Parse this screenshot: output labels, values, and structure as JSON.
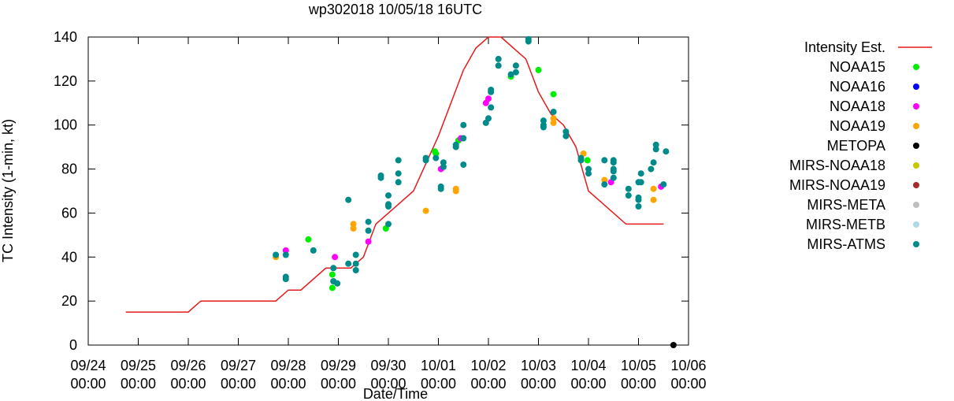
{
  "chart_data": {
    "type": "scatter",
    "title": "wp302018 10/05/18 16UTC",
    "xlabel": "Date/Time",
    "ylabel": "TC Intensity (1-min, kt)",
    "ylim": [
      0,
      140
    ],
    "yticks": [
      "0",
      "20",
      "40",
      "60",
      "80",
      "100",
      "120",
      "140"
    ],
    "xlim": [
      0,
      12
    ],
    "xticks": [
      {
        "date": "09/24",
        "time": "00:00"
      },
      {
        "date": "09/25",
        "time": "00:00"
      },
      {
        "date": "09/26",
        "time": "00:00"
      },
      {
        "date": "09/27",
        "time": "00:00"
      },
      {
        "date": "09/28",
        "time": "00:00"
      },
      {
        "date": "09/29",
        "time": "00:00"
      },
      {
        "date": "09/30",
        "time": "00:00"
      },
      {
        "date": "10/01",
        "time": "00:00"
      },
      {
        "date": "10/02",
        "time": "00:00"
      },
      {
        "date": "10/03",
        "time": "00:00"
      },
      {
        "date": "10/04",
        "time": "00:00"
      },
      {
        "date": "10/05",
        "time": "00:00"
      },
      {
        "date": "10/06",
        "time": "00:00"
      }
    ],
    "grid": false,
    "legend_position": "right",
    "intensity": {
      "name": "Intensity Est.",
      "color": "#e41a1c",
      "points": [
        [
          0.75,
          15
        ],
        [
          2.0,
          15
        ],
        [
          2.25,
          20
        ],
        [
          3.75,
          20
        ],
        [
          4.0,
          25
        ],
        [
          4.25,
          25
        ],
        [
          4.75,
          35
        ],
        [
          5.25,
          35
        ],
        [
          5.5,
          40
        ],
        [
          5.75,
          55
        ],
        [
          6.5,
          70
        ],
        [
          7.0,
          95
        ],
        [
          7.5,
          125
        ],
        [
          7.75,
          135
        ],
        [
          8.0,
          140
        ],
        [
          8.25,
          140
        ],
        [
          8.75,
          130
        ],
        [
          9.0,
          115
        ],
        [
          9.25,
          105
        ],
        [
          9.5,
          100
        ],
        [
          9.75,
          90
        ],
        [
          10.0,
          70
        ],
        [
          10.5,
          60
        ],
        [
          10.75,
          55
        ],
        [
          11.5,
          55
        ]
      ]
    },
    "series": [
      {
        "name": "NOAA15",
        "color": "#00ee00",
        "points": [
          [
            4.4,
            48
          ],
          [
            4.88,
            26
          ],
          [
            4.88,
            32
          ],
          [
            5.95,
            53
          ],
          [
            6.93,
            88
          ],
          [
            6.95,
            87
          ],
          [
            7.4,
            93
          ],
          [
            8.45,
            122
          ],
          [
            9.0,
            125
          ],
          [
            9.3,
            114
          ],
          [
            9.98,
            84
          ]
        ]
      },
      {
        "name": "NOAA16",
        "color": "#0000ff",
        "points": []
      },
      {
        "name": "NOAA18",
        "color": "#ff00ff",
        "points": [
          [
            3.95,
            43
          ],
          [
            4.93,
            40
          ],
          [
            5.6,
            47
          ],
          [
            7.05,
            80
          ],
          [
            7.45,
            94
          ],
          [
            7.95,
            110
          ],
          [
            8.0,
            112
          ],
          [
            10.45,
            74
          ],
          [
            11.45,
            72
          ]
        ]
      },
      {
        "name": "NOAA19",
        "color": "#ffa500",
        "points": [
          [
            3.75,
            40
          ],
          [
            5.3,
            53
          ],
          [
            5.3,
            55
          ],
          [
            6.75,
            61
          ],
          [
            7.35,
            70
          ],
          [
            7.35,
            71
          ],
          [
            9.3,
            101
          ],
          [
            9.3,
            103
          ],
          [
            9.9,
            87
          ],
          [
            10.32,
            75
          ],
          [
            11.3,
            66
          ],
          [
            11.3,
            71
          ]
        ]
      },
      {
        "name": "METOPA",
        "color": "#000000",
        "points": [
          [
            11.7,
            0
          ]
        ]
      },
      {
        "name": "MIRS-NOAA18",
        "color": "#c8c800",
        "points": []
      },
      {
        "name": "MIRS-NOAA19",
        "color": "#a52a2a",
        "points": []
      },
      {
        "name": "MIRS-META",
        "color": "#bebebe",
        "points": []
      },
      {
        "name": "MIRS-METB",
        "color": "#add8e6",
        "points": []
      },
      {
        "name": "MIRS-ATMS",
        "color": "#008b8b",
        "points": [
          [
            3.75,
            41
          ],
          [
            3.95,
            30
          ],
          [
            3.95,
            31
          ],
          [
            3.95,
            41
          ],
          [
            4.5,
            43
          ],
          [
            4.9,
            29
          ],
          [
            4.9,
            35
          ],
          [
            4.98,
            28
          ],
          [
            5.2,
            37
          ],
          [
            5.2,
            66
          ],
          [
            5.35,
            34
          ],
          [
            5.35,
            37
          ],
          [
            5.35,
            41
          ],
          [
            5.6,
            52
          ],
          [
            5.6,
            56
          ],
          [
            5.85,
            76
          ],
          [
            5.85,
            77
          ],
          [
            6.0,
            55
          ],
          [
            6.0,
            63
          ],
          [
            6.0,
            64
          ],
          [
            6.0,
            68
          ],
          [
            6.2,
            74
          ],
          [
            6.2,
            78
          ],
          [
            6.2,
            84
          ],
          [
            6.75,
            84
          ],
          [
            6.75,
            85
          ],
          [
            6.95,
            85
          ],
          [
            7.05,
            71
          ],
          [
            7.05,
            72
          ],
          [
            7.1,
            81
          ],
          [
            7.1,
            83
          ],
          [
            7.35,
            90
          ],
          [
            7.35,
            91
          ],
          [
            7.5,
            82
          ],
          [
            7.5,
            94
          ],
          [
            7.5,
            100
          ],
          [
            7.95,
            101
          ],
          [
            8.0,
            103
          ],
          [
            8.05,
            108
          ],
          [
            8.05,
            115
          ],
          [
            8.05,
            116
          ],
          [
            8.2,
            127
          ],
          [
            8.2,
            130
          ],
          [
            8.45,
            123
          ],
          [
            8.55,
            124
          ],
          [
            8.55,
            127
          ],
          [
            8.8,
            138
          ],
          [
            8.8,
            139
          ],
          [
            9.1,
            99
          ],
          [
            9.1,
            100
          ],
          [
            9.1,
            102
          ],
          [
            9.3,
            106
          ],
          [
            9.55,
            95
          ],
          [
            9.55,
            97
          ],
          [
            9.85,
            84
          ],
          [
            9.85,
            85
          ],
          [
            10.0,
            78
          ],
          [
            10.0,
            80
          ],
          [
            10.32,
            73
          ],
          [
            10.32,
            84
          ],
          [
            10.5,
            76
          ],
          [
            10.5,
            79
          ],
          [
            10.5,
            80
          ],
          [
            10.5,
            83
          ],
          [
            10.5,
            84
          ],
          [
            10.8,
            68
          ],
          [
            10.8,
            71
          ],
          [
            11.0,
            63
          ],
          [
            11.0,
            66
          ],
          [
            11.0,
            67
          ],
          [
            11.0,
            74
          ],
          [
            11.05,
            74
          ],
          [
            11.05,
            78
          ],
          [
            11.25,
            80
          ],
          [
            11.3,
            83
          ],
          [
            11.35,
            89
          ],
          [
            11.35,
            91
          ],
          [
            11.5,
            73
          ],
          [
            11.55,
            88
          ]
        ]
      }
    ]
  }
}
